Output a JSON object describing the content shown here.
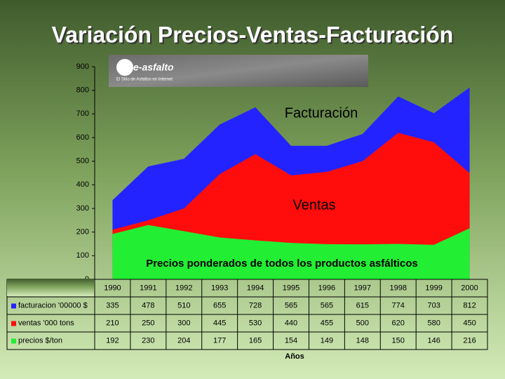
{
  "chart_data": {
    "type": "area",
    "title": "Variación Precios-Ventas-Facturación",
    "logo": {
      "name": "e-asfalto",
      "tagline": "El Sitio de Asfaltos en Internet"
    },
    "annotations": [
      "Facturación",
      "Ventas",
      "Precios ponderados de todos los productos asfálticos"
    ],
    "x_label": "Años",
    "categories": [
      "1990",
      "1991",
      "1992",
      "1993",
      "1994",
      "1995",
      "1996",
      "1997",
      "1998",
      "1999",
      "2000"
    ],
    "series": [
      {
        "name": "facturacion '00000 $",
        "color": "#2323ff",
        "values": [
          335,
          478,
          510,
          655,
          728,
          565,
          565,
          615,
          774,
          703,
          812
        ]
      },
      {
        "name": "ventas '000 tons",
        "color": "#ff0d0d",
        "values": [
          210,
          250,
          300,
          445,
          530,
          440,
          455,
          500,
          620,
          580,
          450
        ]
      },
      {
        "name": "precios $/ton",
        "color": "#22ee33",
        "values": [
          192,
          230,
          204,
          177,
          165,
          154,
          149,
          148,
          150,
          146,
          216
        ]
      }
    ],
    "ylim": [
      0,
      900
    ],
    "yticks": [
      0,
      100,
      200,
      300,
      400,
      500,
      600,
      700,
      800,
      900
    ]
  }
}
